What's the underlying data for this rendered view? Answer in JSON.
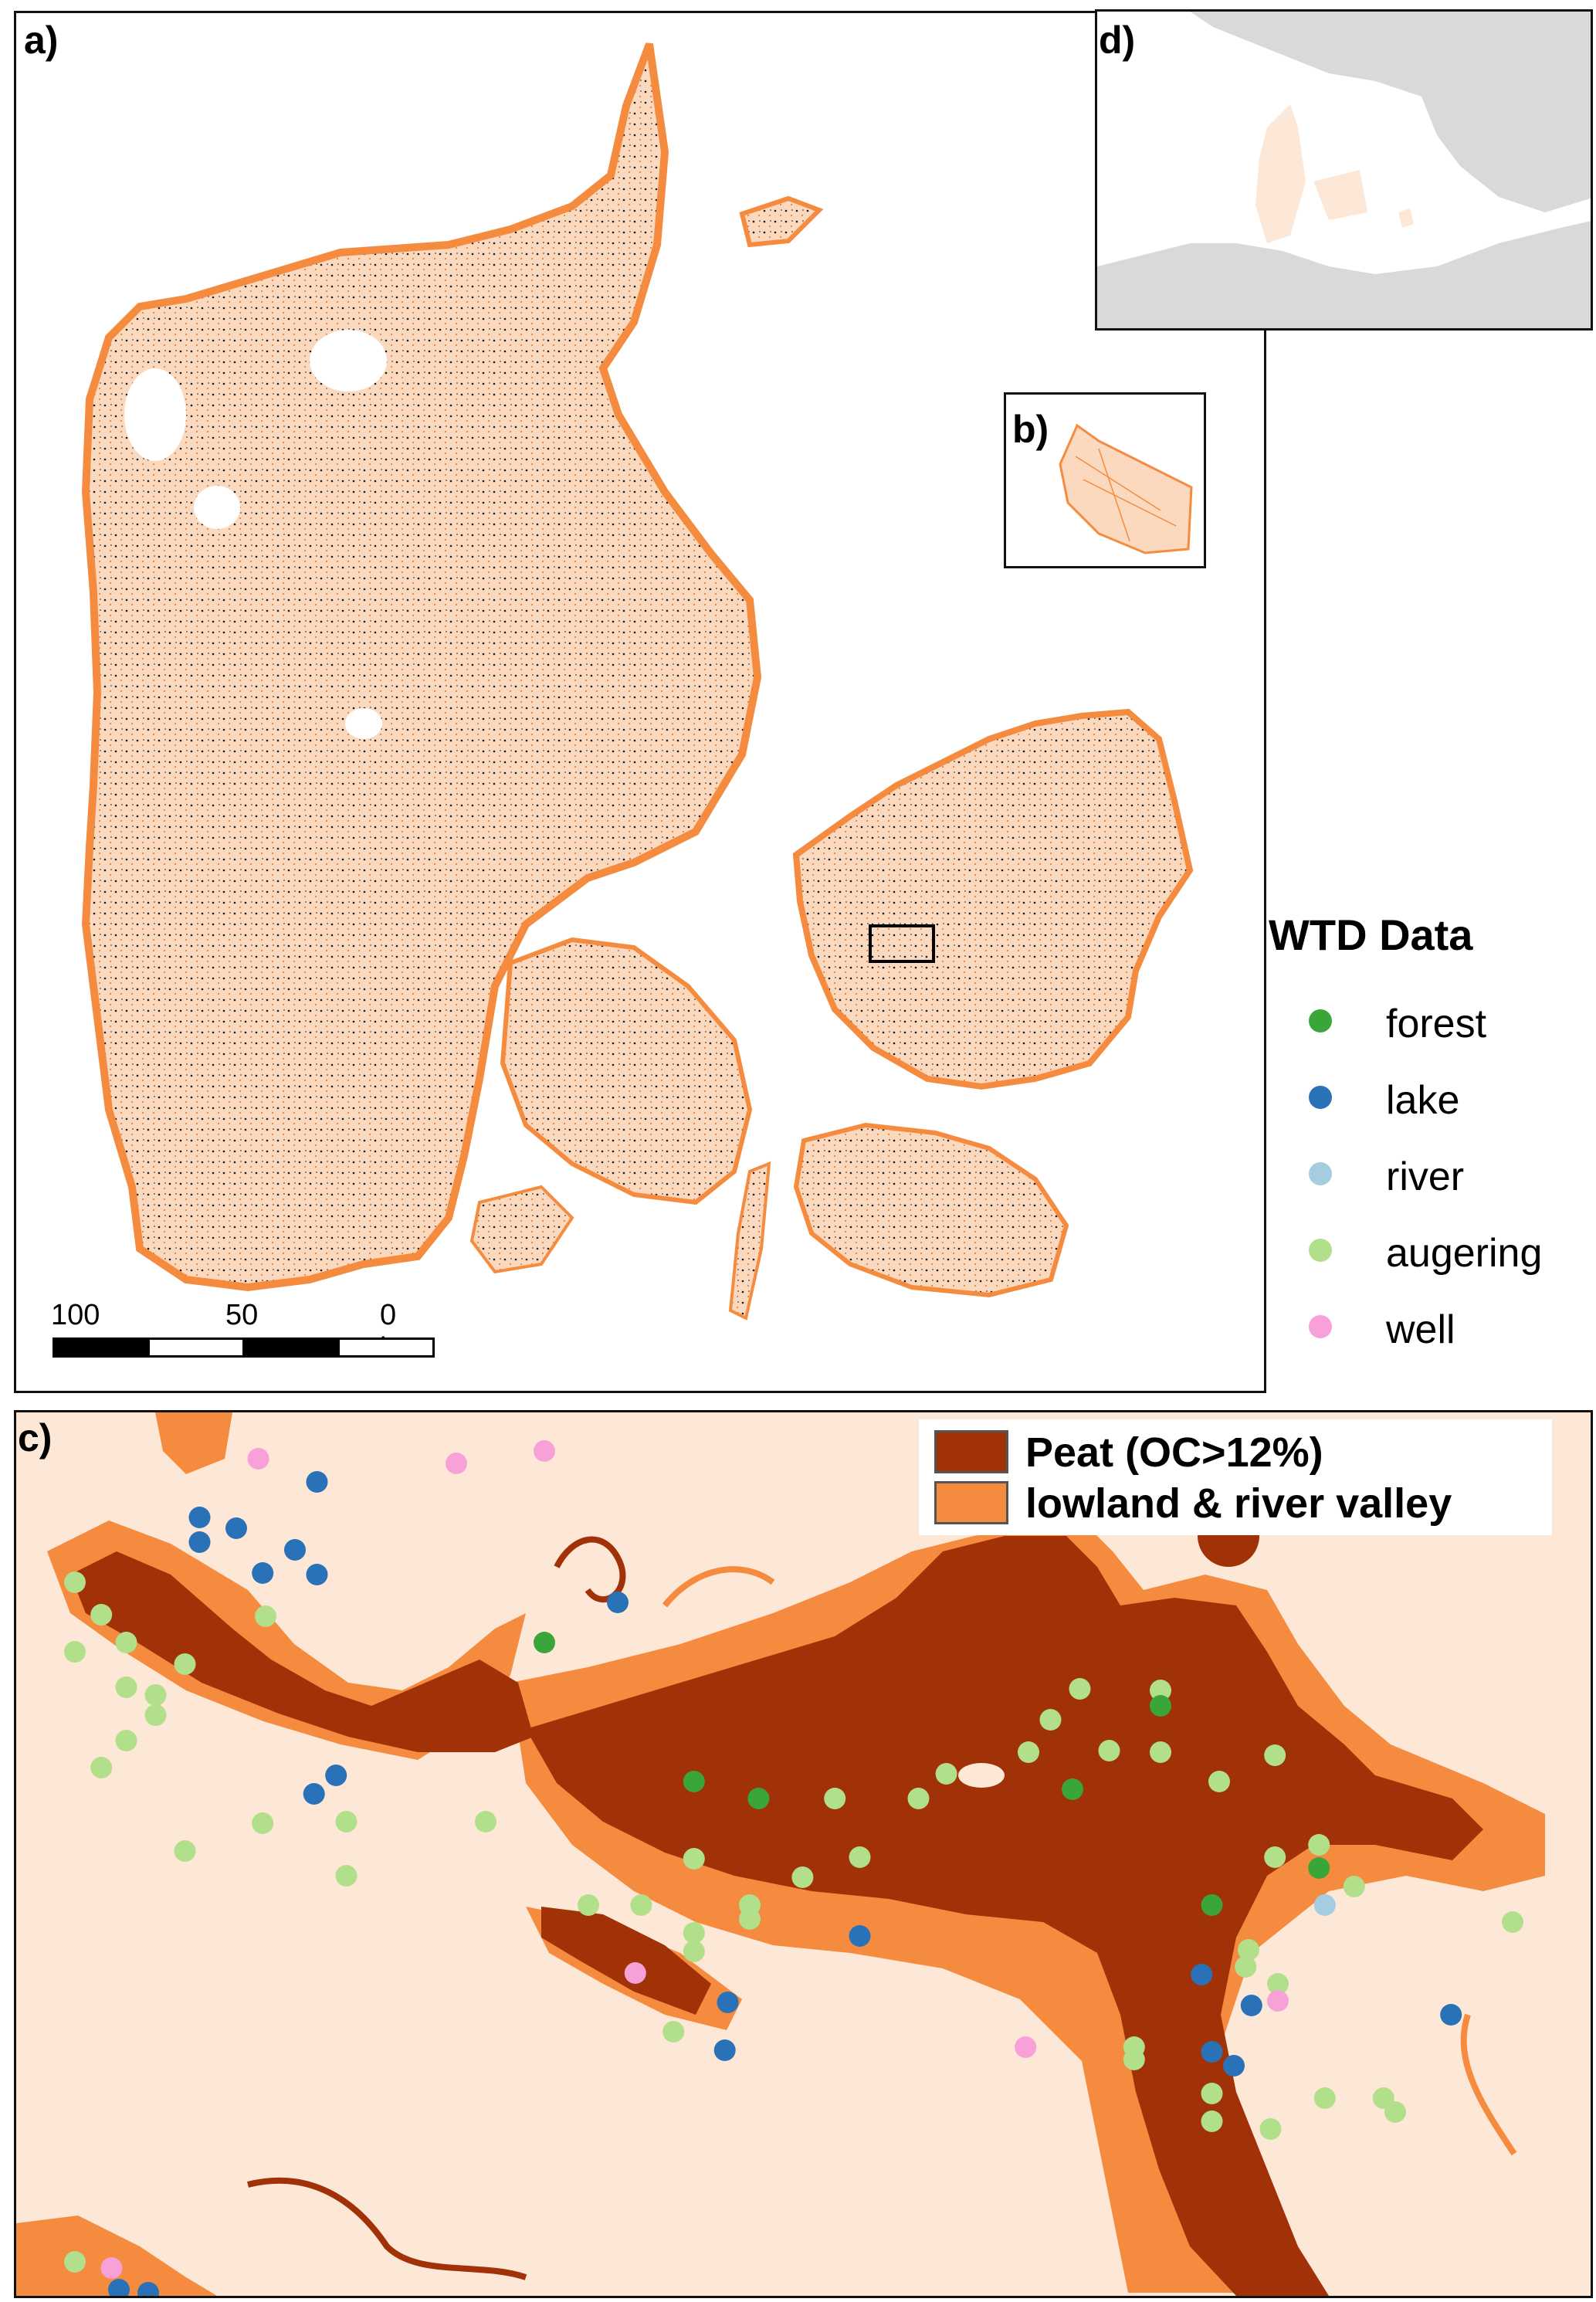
{
  "panels": {
    "a": {
      "label": "a)"
    },
    "b": {
      "label": "b)"
    },
    "c": {
      "label": "c)"
    },
    "d": {
      "label": "d)"
    }
  },
  "legend": {
    "title": "WTD Data",
    "items": [
      {
        "label": "forest",
        "color": "#3aa63a"
      },
      {
        "label": "lake",
        "color": "#2a72b8"
      },
      {
        "label": "river",
        "color": "#a6cce0"
      },
      {
        "label": "augering",
        "color": "#b2df8a"
      },
      {
        "label": "well",
        "color": "#f7a1d8"
      }
    ]
  },
  "scale_bar": {
    "labels": [
      "100",
      "50",
      "0 km"
    ]
  },
  "map_colors": {
    "background": "#fde7d6",
    "lowland": "#f58b3f",
    "peat": "#a13106",
    "water": "#ffffff",
    "land_grey": "#d9d9d9",
    "denmark_tint": "#fde7d6"
  },
  "panel_c_legend": [
    {
      "label": "Peat (OC>12%)",
      "color": "#a13106"
    },
    {
      "label": "lowland & river valley",
      "color": "#f58b3f"
    }
  ]
}
